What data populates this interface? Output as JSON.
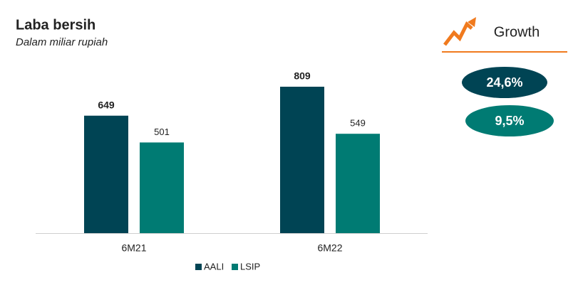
{
  "chart_data": {
    "type": "bar",
    "title": "Laba bersih",
    "subtitle": "Dalam miliar rupiah",
    "categories": [
      "6M21",
      "6M22"
    ],
    "series": [
      {
        "name": "AALI",
        "color": "#004454",
        "values": [
          649,
          809
        ]
      },
      {
        "name": "LSIP",
        "color": "#007b73",
        "values": [
          501,
          549
        ]
      }
    ],
    "legend": "bottom"
  },
  "growth": {
    "title": "Growth",
    "items": [
      {
        "label": "24,6%",
        "color": "#004454"
      },
      {
        "label": "9,5%",
        "color": "#007b73"
      }
    ]
  }
}
